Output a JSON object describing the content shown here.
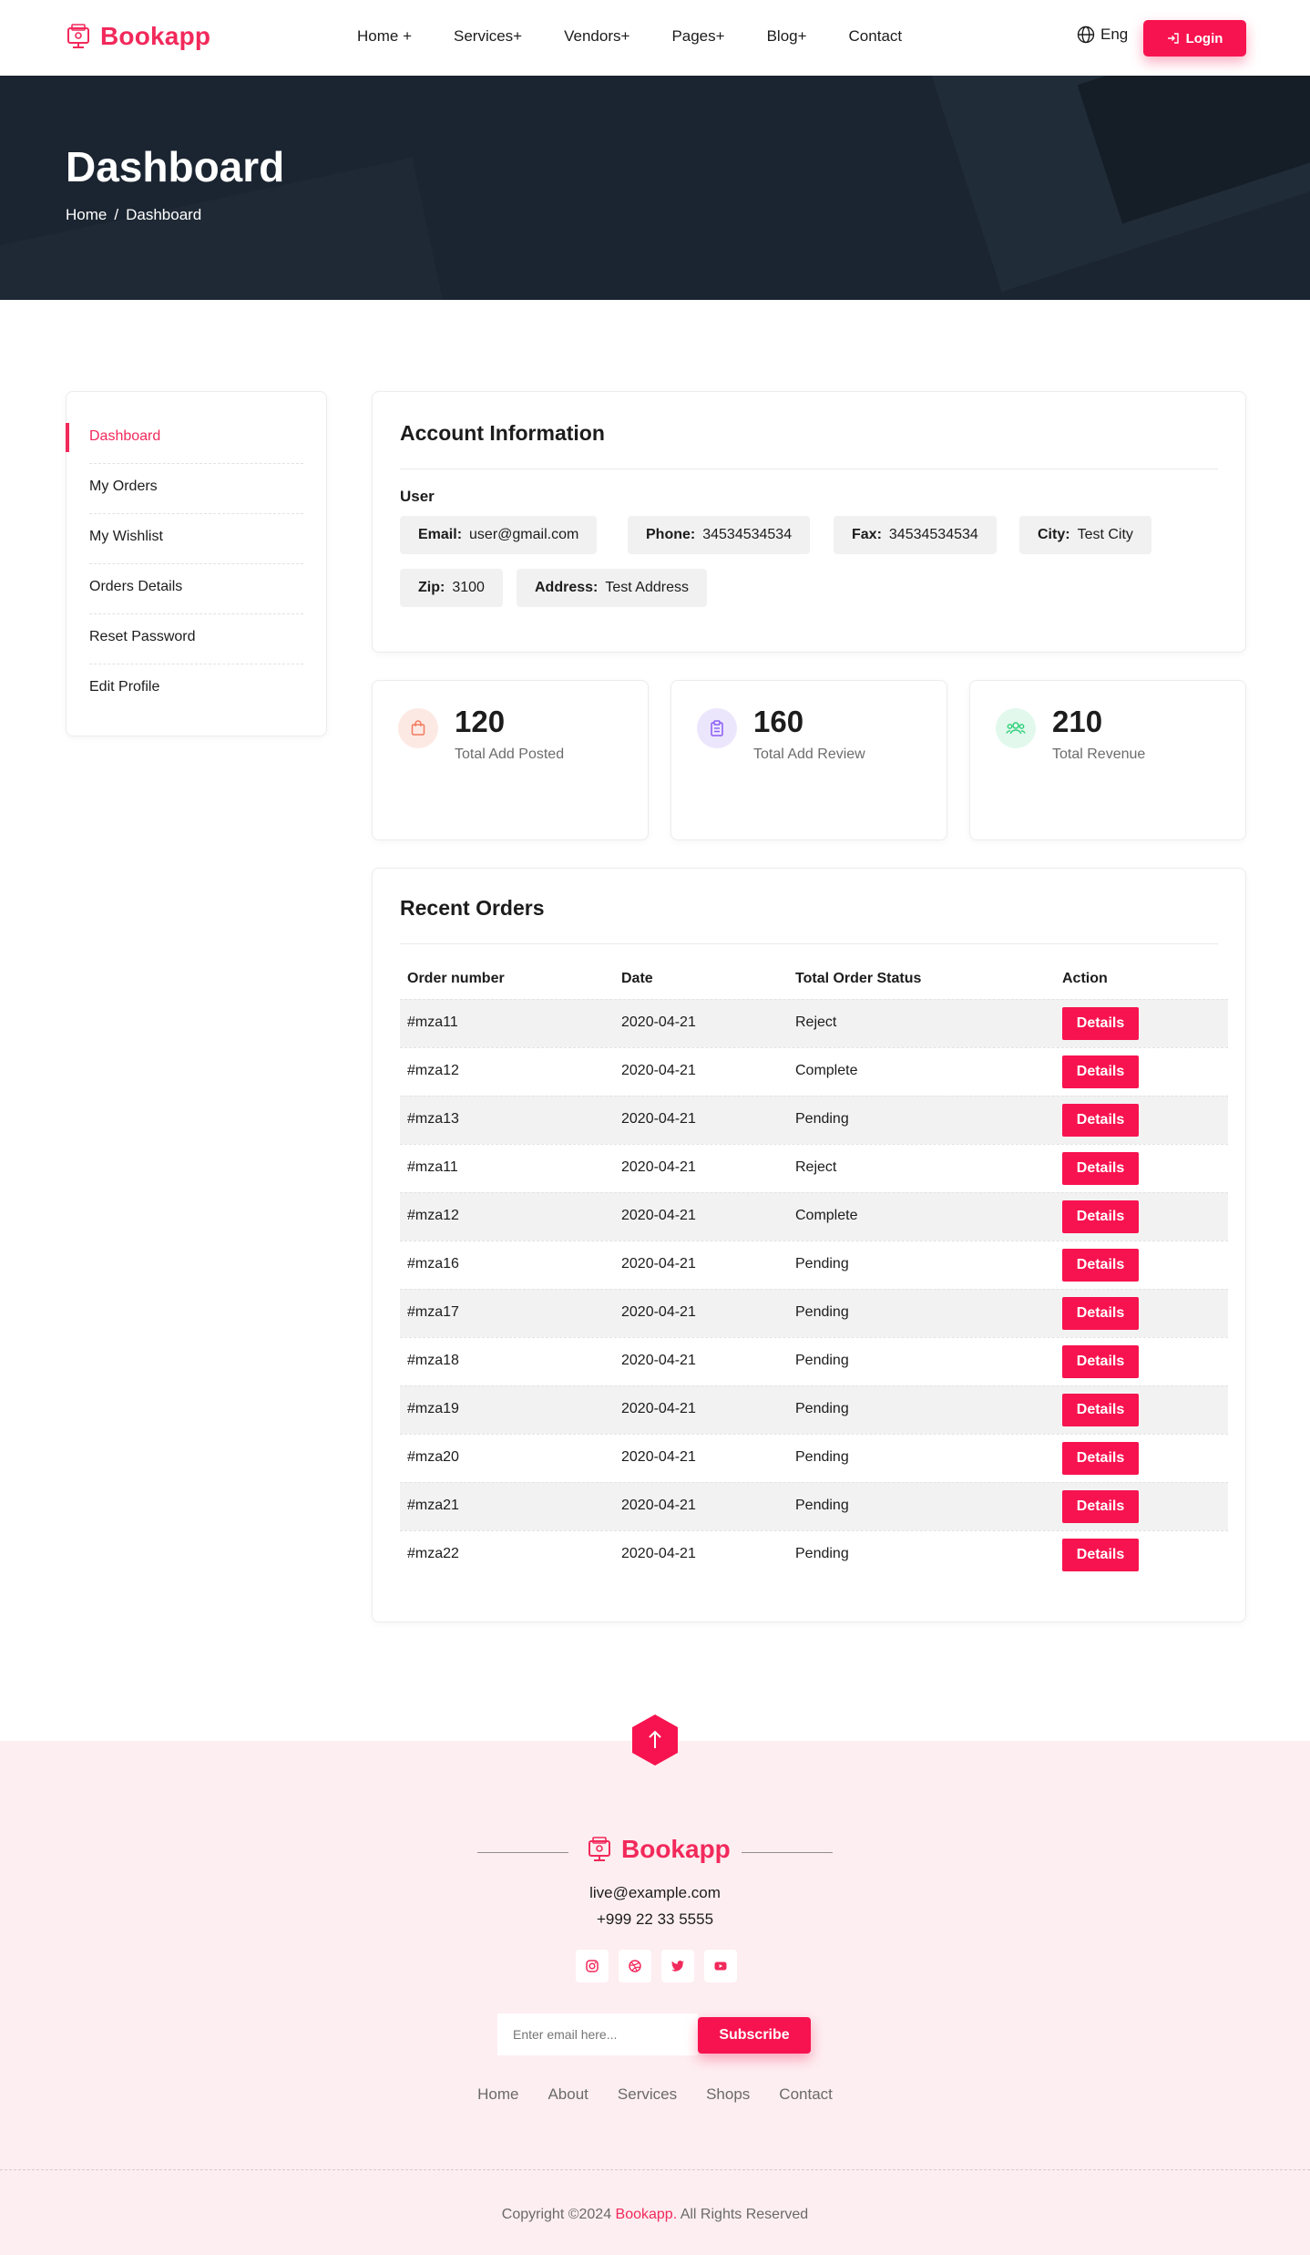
{
  "header": {
    "brand": "Bookapp",
    "nav": [
      "Home +",
      "Services+",
      "Vendors+",
      "Pages+",
      "Blog+",
      "Contact"
    ],
    "language": "Eng",
    "login_label": "Login"
  },
  "banner": {
    "title": "Dashboard",
    "breadcrumb": {
      "home": "Home",
      "sep": "/",
      "current": "Dashboard"
    }
  },
  "sidebar": {
    "items": [
      "Dashboard",
      "My Orders",
      "My Wishlist",
      "Orders Details",
      "Reset Password",
      "Edit Profile"
    ],
    "active_index": 0
  },
  "account": {
    "title": "Account Information",
    "user_label": "User",
    "fields": [
      {
        "label": "Email:",
        "value": "user@gmail.com"
      },
      {
        "label": "Phone:",
        "value": "34534534534"
      },
      {
        "label": "Fax:",
        "value": "34534534534"
      },
      {
        "label": "City:",
        "value": "Test City"
      },
      {
        "label": "Zip:",
        "value": "3100"
      },
      {
        "label": "Address:",
        "value": "Test Address"
      }
    ]
  },
  "stats": [
    {
      "value": "120",
      "label": "Total Add Posted",
      "icon": "shopping-bag-icon",
      "color": "#f27a5e",
      "bg": "#fde9e4"
    },
    {
      "value": "160",
      "label": "Total Add Review",
      "icon": "clipboard-icon",
      "color": "#8a5cf5",
      "bg": "#ece6fd"
    },
    {
      "value": "210",
      "label": "Total Revenue",
      "icon": "users-icon",
      "color": "#2dcf79",
      "bg": "#e2f8ec"
    }
  ],
  "orders": {
    "title": "Recent Orders",
    "columns": [
      "Order number",
      "Date",
      "Total Order Status",
      "Action"
    ],
    "action_label": "Details",
    "rows": [
      [
        "#mza11",
        "2020-04-21",
        "Reject"
      ],
      [
        "#mza12",
        "2020-04-21",
        "Complete"
      ],
      [
        "#mza13",
        "2020-04-21",
        "Pending"
      ],
      [
        "#mza11",
        "2020-04-21",
        "Reject"
      ],
      [
        "#mza12",
        "2020-04-21",
        "Complete"
      ],
      [
        "#mza16",
        "2020-04-21",
        "Pending"
      ],
      [
        "#mza17",
        "2020-04-21",
        "Pending"
      ],
      [
        "#mza18",
        "2020-04-21",
        "Pending"
      ],
      [
        "#mza19",
        "2020-04-21",
        "Pending"
      ],
      [
        "#mza20",
        "2020-04-21",
        "Pending"
      ],
      [
        "#mza21",
        "2020-04-21",
        "Pending"
      ],
      [
        "#mza22",
        "2020-04-21",
        "Pending"
      ]
    ]
  },
  "footer": {
    "brand": "Bookapp",
    "email": "live@example.com",
    "phone": "+999 22 33 5555",
    "socials": [
      "instagram-icon",
      "dribbble-icon",
      "twitter-icon",
      "youtube-icon"
    ],
    "subscribe_placeholder": "Enter email here...",
    "subscribe_label": "Subscribe",
    "links": [
      "Home",
      "About",
      "Services",
      "Shops",
      "Contact"
    ],
    "copyright_prefix": "Copyright ©2024 ",
    "copyright_brand": "Bookapp.",
    "copyright_suffix": " All Rights Reserved"
  },
  "colors": {
    "accent": "#f7134f",
    "banner": "#1b2531",
    "footer_bg": "#fdeef1"
  }
}
